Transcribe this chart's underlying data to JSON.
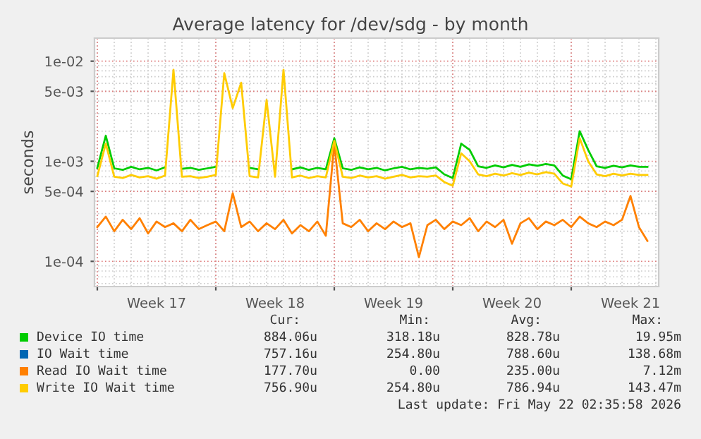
{
  "chart_data": {
    "type": "line",
    "title": "Average latency for /dev/sdg - by month",
    "ylabel": "seconds",
    "x": [
      "2026-04-20T00:00",
      "2026-04-20T12:00",
      "2026-04-21T00:00",
      "2026-04-21T12:00",
      "2026-04-22T00:00",
      "2026-04-22T12:00",
      "2026-04-23T00:00",
      "2026-04-23T12:00",
      "2026-04-24T00:00",
      "2026-04-24T12:00",
      "2026-04-25T00:00",
      "2026-04-25T12:00",
      "2026-04-26T00:00",
      "2026-04-26T12:00",
      "2026-04-27T00:00",
      "2026-04-27T12:00",
      "2026-04-28T00:00",
      "2026-04-28T12:00",
      "2026-04-29T00:00",
      "2026-04-29T12:00",
      "2026-04-30T00:00",
      "2026-04-30T12:00",
      "2026-05-01T00:00",
      "2026-05-01T12:00",
      "2026-05-02T00:00",
      "2026-05-02T12:00",
      "2026-05-03T00:00",
      "2026-05-03T12:00",
      "2026-05-04T00:00",
      "2026-05-04T12:00",
      "2026-05-05T00:00",
      "2026-05-05T12:00",
      "2026-05-06T00:00",
      "2026-05-06T12:00",
      "2026-05-07T00:00",
      "2026-05-07T12:00",
      "2026-05-08T00:00",
      "2026-05-08T12:00",
      "2026-05-09T00:00",
      "2026-05-09T12:00",
      "2026-05-10T00:00",
      "2026-05-10T12:00",
      "2026-05-11T00:00",
      "2026-05-11T12:00",
      "2026-05-12T00:00",
      "2026-05-12T12:00",
      "2026-05-13T00:00",
      "2026-05-13T12:00",
      "2026-05-14T00:00",
      "2026-05-14T12:00",
      "2026-05-15T00:00",
      "2026-05-15T12:00",
      "2026-05-16T00:00",
      "2026-05-16T12:00",
      "2026-05-17T00:00",
      "2026-05-17T12:00",
      "2026-05-18T00:00",
      "2026-05-18T12:00",
      "2026-05-19T00:00",
      "2026-05-19T12:00",
      "2026-05-20T00:00",
      "2026-05-20T12:00",
      "2026-05-21T00:00",
      "2026-05-21T12:00",
      "2026-05-22T00:00",
      "2026-05-22T12:00"
    ],
    "series": [
      {
        "name": "Device IO time",
        "color": "#00cc00",
        "values": [
          0.00086,
          0.0018,
          0.00085,
          0.00082,
          0.00088,
          0.00083,
          0.00086,
          0.00081,
          0.00087,
          null,
          0.00084,
          0.00086,
          0.00082,
          0.00085,
          0.00088,
          null,
          null,
          null,
          0.00086,
          0.00083,
          null,
          null,
          null,
          0.00083,
          0.00087,
          0.00082,
          0.00086,
          0.00083,
          0.0017,
          0.00085,
          0.00082,
          0.00087,
          0.00083,
          0.00086,
          0.00081,
          0.00085,
          0.00088,
          0.00083,
          0.00086,
          0.00084,
          0.00087,
          0.00074,
          0.00068,
          0.0015,
          0.0013,
          0.00089,
          0.00086,
          0.00091,
          0.00087,
          0.00092,
          0.00088,
          0.00093,
          0.0009,
          0.00094,
          0.00091,
          0.00072,
          0.00066,
          0.002,
          0.0013,
          0.00089,
          0.00086,
          0.0009,
          0.00087,
          0.00091,
          0.00088,
          0.00088
        ]
      },
      {
        "name": "IO Wait time",
        "color": "#0066b3",
        "values": [
          null,
          null,
          null,
          null,
          null,
          null,
          null,
          null,
          null,
          null,
          null,
          null,
          null,
          null,
          null,
          null,
          null,
          null,
          null,
          null,
          null,
          null,
          null,
          null,
          null,
          null,
          null,
          null,
          null,
          null,
          null,
          null,
          null,
          null,
          null,
          null,
          null,
          null,
          null,
          null,
          null,
          null,
          null,
          null,
          null,
          null,
          null,
          null,
          null,
          null,
          null,
          null,
          null,
          null,
          null,
          null,
          null,
          null,
          null,
          null,
          null,
          null,
          null,
          null,
          null,
          null
        ]
      },
      {
        "name": "Read IO Wait time",
        "color": "#ff8000",
        "values": [
          0.00022,
          0.00028,
          0.0002,
          0.00026,
          0.00021,
          0.00027,
          0.00019,
          0.00025,
          0.00022,
          0.00024,
          0.0002,
          0.00026,
          0.00021,
          0.00023,
          0.00025,
          0.0002,
          0.00048,
          0.00022,
          0.00025,
          0.0002,
          0.00024,
          0.00021,
          0.00026,
          0.00019,
          0.00023,
          0.0002,
          0.00025,
          0.00018,
          0.0015,
          0.00024,
          0.00022,
          0.00026,
          0.0002,
          0.00024,
          0.00021,
          0.00025,
          0.00022,
          0.00024,
          0.00011,
          0.00023,
          0.00026,
          0.00021,
          0.00025,
          0.00023,
          0.00027,
          0.0002,
          0.00025,
          0.00022,
          0.00026,
          0.00015,
          0.00024,
          0.00027,
          0.00021,
          0.00025,
          0.00023,
          0.00026,
          0.00022,
          0.00028,
          0.00024,
          0.00022,
          0.00025,
          0.00023,
          0.00026,
          0.00045,
          0.00022,
          0.00016
        ]
      },
      {
        "name": "Write IO Wait time",
        "color": "#ffcc00",
        "values": [
          0.00071,
          0.0015,
          0.0007,
          0.00068,
          0.00073,
          0.00069,
          0.00071,
          0.00067,
          0.00072,
          0.0082,
          0.0007,
          0.00071,
          0.00068,
          0.0007,
          0.00073,
          0.0076,
          0.0034,
          0.0061,
          0.00071,
          0.00069,
          0.0041,
          0.0007,
          0.0082,
          0.00069,
          0.00072,
          0.00068,
          0.00071,
          0.00069,
          0.0016,
          0.0007,
          0.00068,
          0.00072,
          0.00069,
          0.00071,
          0.00067,
          0.0007,
          0.00073,
          0.00069,
          0.00071,
          0.0007,
          0.00072,
          0.00062,
          0.00057,
          0.0012,
          0.001,
          0.00074,
          0.00071,
          0.00075,
          0.00072,
          0.00076,
          0.00073,
          0.00077,
          0.00074,
          0.00078,
          0.00075,
          0.0006,
          0.00056,
          0.0017,
          0.001,
          0.00074,
          0.00071,
          0.00075,
          0.00072,
          0.00075,
          0.00073,
          0.00073
        ]
      }
    ],
    "log": true,
    "ylim": [
      5.6e-05,
      0.017
    ],
    "yticks": [
      {
        "value": 0.0001,
        "label": "1e-04"
      },
      {
        "value": 0.0005,
        "label": "5e-04"
      },
      {
        "value": 0.001,
        "label": "1e-03"
      },
      {
        "value": 0.005,
        "label": "5e-03"
      },
      {
        "value": 0.01,
        "label": "1e-02"
      }
    ],
    "xlim": [
      "2026-04-19T20:00",
      "2026-05-23T04:00"
    ],
    "xticks": [
      {
        "value": "2026-04-20",
        "label": null
      },
      {
        "value": "2026-04-23T12:00",
        "label": "Week 17"
      },
      {
        "value": "2026-04-27",
        "label": null
      },
      {
        "value": "2026-04-30T12:00",
        "label": "Week 18"
      },
      {
        "value": "2026-05-04",
        "label": null
      },
      {
        "value": "2026-05-07T12:00",
        "label": "Week 19"
      },
      {
        "value": "2026-05-11",
        "label": null
      },
      {
        "value": "2026-05-14T12:00",
        "label": "Week 20"
      },
      {
        "value": "2026-05-18",
        "label": null
      },
      {
        "value": "2026-05-21T12:00",
        "label": "Week 21"
      }
    ],
    "grid": true,
    "legend": "bottom",
    "marker": "none",
    "line_style": "solid",
    "annotations": [
      "Cur:",
      "Min:",
      "Avg:",
      "Max:",
      "884.06u",
      "318.18u",
      "828.78u",
      "19.95m",
      "757.16u",
      "254.80u",
      "788.60u",
      "138.68m",
      "177.70u",
      "0.00",
      "235.00u",
      "7.12m",
      "756.90u",
      "254.80u",
      "786.94u",
      "143.47m",
      "Last update: Fri May 22 02:35:58 2026"
    ]
  }
}
